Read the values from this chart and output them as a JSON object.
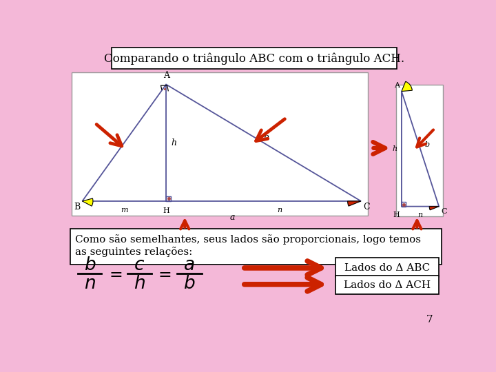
{
  "bg_color": "#f4b8d8",
  "title": "Comparando o triângulo ABC com o triângulo ACH.",
  "title_fontsize": 12,
  "text_box1_line1": "Como são semelhantes, seus lados são proporcionais, logo temos",
  "text_box1_line2": "as seguintes relações:",
  "label_ABC": "Lados do Δ ABC",
  "label_ACH": "Lados do Δ ACH",
  "page_number": "7",
  "white_box_color": "#ffffff",
  "arrow_color": "#cc2200",
  "line_color": "#555599"
}
